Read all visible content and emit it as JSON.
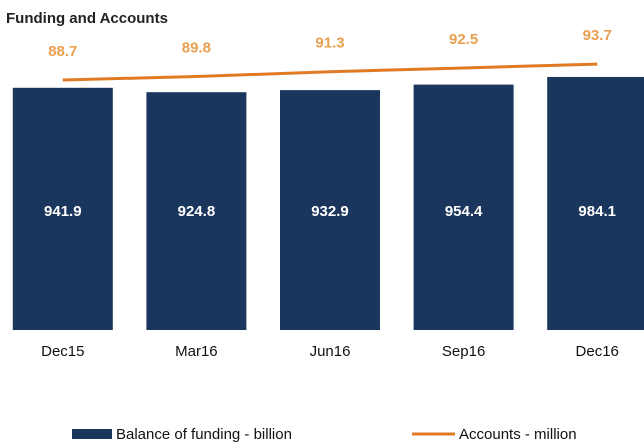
{
  "chart_data": {
    "type": "bar_line",
    "title": "Funding and Accounts",
    "categories": [
      "Dec15",
      "Mar16",
      "Jun16",
      "Sep16",
      "Dec16"
    ],
    "series": [
      {
        "name": "Balance of funding - billion",
        "color": "#1b365d",
        "type": "bar",
        "values": [
          941.9,
          924.8,
          932.9,
          954.4,
          984.1
        ]
      },
      {
        "name": "Accounts - million",
        "color": "#e07b24",
        "type": "line",
        "axis": "y2",
        "values": [
          88.7,
          89.8,
          91.3,
          92.5,
          93.7
        ]
      }
    ],
    "ylim": [
      0,
      1050
    ],
    "y2lim": [
      10,
      95
    ],
    "legend": "bottom"
  }
}
